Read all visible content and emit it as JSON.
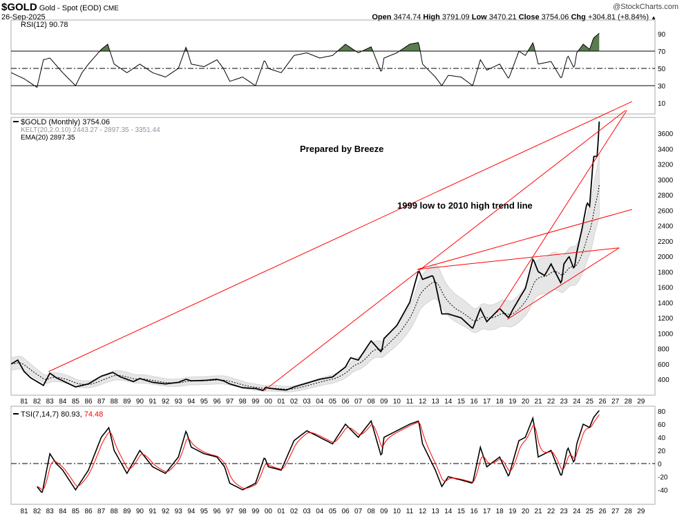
{
  "header": {
    "symbol": "$GOLD",
    "name": "Gold - Spot (EOD)",
    "exchange": "CME",
    "date": "26-Sep-2025",
    "copyright": "@StockCharts.com",
    "open_label": "Open",
    "open": "3474.74",
    "high_label": "High",
    "high": "3791.09",
    "low_label": "Low",
    "low": "3470.21",
    "close_label": "Close",
    "close": "3754.06",
    "chg_label": "Chg",
    "chg": "+304.81 (+8.84%)"
  },
  "colors": {
    "price": "#000000",
    "trend": "#ff0000",
    "band": "#e6e6e6",
    "rsi_fill": "#5a7d50",
    "tsi_signal": "#ff0000"
  },
  "chart_data": [
    {
      "type": "line",
      "title": "RSI(12) 90.78",
      "ylim": [
        0,
        100
      ],
      "y_ticks": [
        10,
        30,
        50,
        70,
        90
      ],
      "reference_lines": [
        30,
        50,
        70
      ],
      "x": [
        1980,
        1981,
        1982,
        1982.5,
        1983,
        1984,
        1985,
        1985.5,
        1986,
        1987,
        1987.5,
        1988,
        1989,
        1990,
        1990.5,
        1991,
        1992,
        1993,
        1993.6,
        1994,
        1995,
        1996,
        1996.5,
        1997,
        1998,
        1999,
        1999.7,
        2000,
        2001,
        2002,
        2003,
        2004,
        2005,
        2006,
        2007,
        2008,
        2008.8,
        2009,
        2010,
        2011,
        2011.7,
        2012,
        2013,
        2013.5,
        2014,
        2015,
        2015.9,
        2016.5,
        2017,
        2018,
        2018.7,
        2019.5,
        2020,
        2020.6,
        2021,
        2022,
        2022.8,
        2023.3,
        2023.8,
        2024,
        2024.5,
        2025,
        2025.3,
        2025.75
      ],
      "values": [
        45,
        38,
        28,
        60,
        62,
        45,
        30,
        45,
        55,
        72,
        78,
        55,
        45,
        55,
        50,
        45,
        40,
        50,
        75,
        55,
        52,
        60,
        50,
        35,
        40,
        30,
        60,
        50,
        45,
        65,
        68,
        62,
        65,
        78,
        68,
        75,
        45,
        62,
        68,
        78,
        80,
        55,
        40,
        30,
        42,
        40,
        30,
        60,
        48,
        55,
        38,
        70,
        65,
        80,
        55,
        58,
        38,
        65,
        50,
        68,
        78,
        72,
        85,
        90.78
      ]
    },
    {
      "type": "line",
      "title": "Prepared by Breeze",
      "legend": [
        "$GOLD (Monthly) 3754.06",
        "KELT(20,2.0,10) 2443.27 - 2897.35 - 3351.44",
        "EMA(20) 2897.35"
      ],
      "annotation": "1999 low to 2010 high trend line",
      "ylim": [
        200,
        3800
      ],
      "y_ticks": [
        400,
        600,
        800,
        1000,
        1200,
        1400,
        1600,
        1800,
        2000,
        2200,
        2400,
        2600,
        2800,
        3000,
        3200,
        3400,
        3600
      ],
      "x_ticks": [
        "81",
        "82",
        "83",
        "84",
        "85",
        "86",
        "87",
        "88",
        "89",
        "90",
        "91",
        "92",
        "93",
        "94",
        "95",
        "96",
        "97",
        "98",
        "99",
        "00",
        "01",
        "02",
        "03",
        "04",
        "05",
        "06",
        "07",
        "08",
        "09",
        "10",
        "11",
        "12",
        "13",
        "14",
        "15",
        "16",
        "17",
        "18",
        "19",
        "20",
        "21",
        "22",
        "23",
        "24",
        "25",
        "26",
        "27",
        "28",
        "29"
      ],
      "x": [
        1980,
        1980.5,
        1981,
        1981.5,
        1982.5,
        1983,
        1983.5,
        1984,
        1985,
        1985.5,
        1986,
        1987,
        1987.9,
        1988.5,
        1989,
        1989.5,
        1990,
        1991,
        1992,
        1993,
        1993.6,
        1994,
        1995,
        1996,
        1996.5,
        1997,
        1998,
        1999,
        1999.6,
        1999.8,
        2000,
        2001,
        2001.4,
        2002,
        2003,
        2004,
        2005,
        2006,
        2006.4,
        2007,
        2008,
        2008.8,
        2009,
        2010,
        2011,
        2011.7,
        2012,
        2012.8,
        2013,
        2013.5,
        2014,
        2015,
        2015.9,
        2016.5,
        2017,
        2018,
        2018.7,
        2019,
        2019.7,
        2020,
        2020.6,
        2021,
        2021.5,
        2022,
        2022.8,
        2023,
        2023.4,
        2023.8,
        2024,
        2024.4,
        2024.8,
        2025,
        2025.3,
        2025.6,
        2025.75
      ],
      "values": [
        600,
        650,
        500,
        420,
        320,
        480,
        420,
        380,
        300,
        320,
        340,
        440,
        490,
        430,
        400,
        370,
        410,
        360,
        340,
        360,
        400,
        380,
        385,
        400,
        380,
        340,
        290,
        280,
        255,
        300,
        285,
        265,
        260,
        300,
        350,
        400,
        430,
        560,
        680,
        650,
        900,
        750,
        930,
        1100,
        1400,
        1820,
        1700,
        1750,
        1650,
        1250,
        1250,
        1200,
        1060,
        1320,
        1150,
        1320,
        1200,
        1300,
        1500,
        1580,
        1970,
        1800,
        1750,
        1900,
        1640,
        1900,
        2000,
        1830,
        2050,
        2350,
        2700,
        2650,
        3300,
        3300,
        3754.06
      ],
      "trend_lines": [
        {
          "from": [
            1982.9,
            500
          ],
          "to": [
            2028.3,
            4014
          ]
        },
        {
          "from": [
            1999.7,
            256
          ],
          "to": [
            2027.8,
            3900
          ]
        },
        {
          "from": [
            2011.6,
            1830
          ],
          "to": [
            2027.3,
            2110
          ]
        },
        {
          "from": [
            2011.6,
            1830
          ],
          "to": [
            2028.3,
            2610
          ]
        },
        {
          "from": [
            2017.8,
            1270
          ],
          "to": [
            2027.9,
            3900
          ]
        },
        {
          "from": [
            2018.6,
            1180
          ],
          "to": [
            2027.3,
            2110
          ]
        }
      ]
    },
    {
      "type": "line",
      "title": "TSI(7,14,7)",
      "tsi_value": "80.93,",
      "signal_value": "74.48",
      "ylim": [
        -50,
        85
      ],
      "y_ticks": [
        -40,
        -20,
        0,
        20,
        40,
        60,
        80
      ],
      "x": [
        1982,
        1982.4,
        1983,
        1983.5,
        1984,
        1985,
        1986,
        1987,
        1987.6,
        1988,
        1989,
        1990,
        1991,
        1992,
        1993,
        1993.6,
        1994,
        1995,
        1996,
        1996.6,
        1997,
        1998,
        1999,
        1999.7,
        2000,
        2001,
        2002,
        2003,
        2004,
        2005,
        2006,
        2007,
        2008,
        2008.8,
        2009,
        2010,
        2011,
        2011.7,
        2012,
        2013,
        2013.5,
        2014,
        2015,
        2015.9,
        2016.5,
        2017,
        2018,
        2018.7,
        2019.5,
        2020,
        2020.6,
        2021,
        2022,
        2022.8,
        2023.3,
        2023.8,
        2024,
        2024.5,
        2025,
        2025.3,
        2025.75
      ],
      "values": [
        -35,
        -45,
        15,
        0,
        -10,
        -40,
        -10,
        40,
        55,
        20,
        -15,
        20,
        -5,
        -15,
        10,
        50,
        25,
        15,
        10,
        -5,
        -30,
        -40,
        -30,
        10,
        -5,
        -10,
        35,
        50,
        40,
        30,
        60,
        40,
        65,
        10,
        40,
        50,
        60,
        65,
        30,
        -10,
        -35,
        -20,
        -25,
        -30,
        25,
        -5,
        10,
        -20,
        35,
        40,
        70,
        10,
        20,
        -20,
        25,
        0,
        30,
        60,
        55,
        70,
        80.93
      ]
    }
  ]
}
